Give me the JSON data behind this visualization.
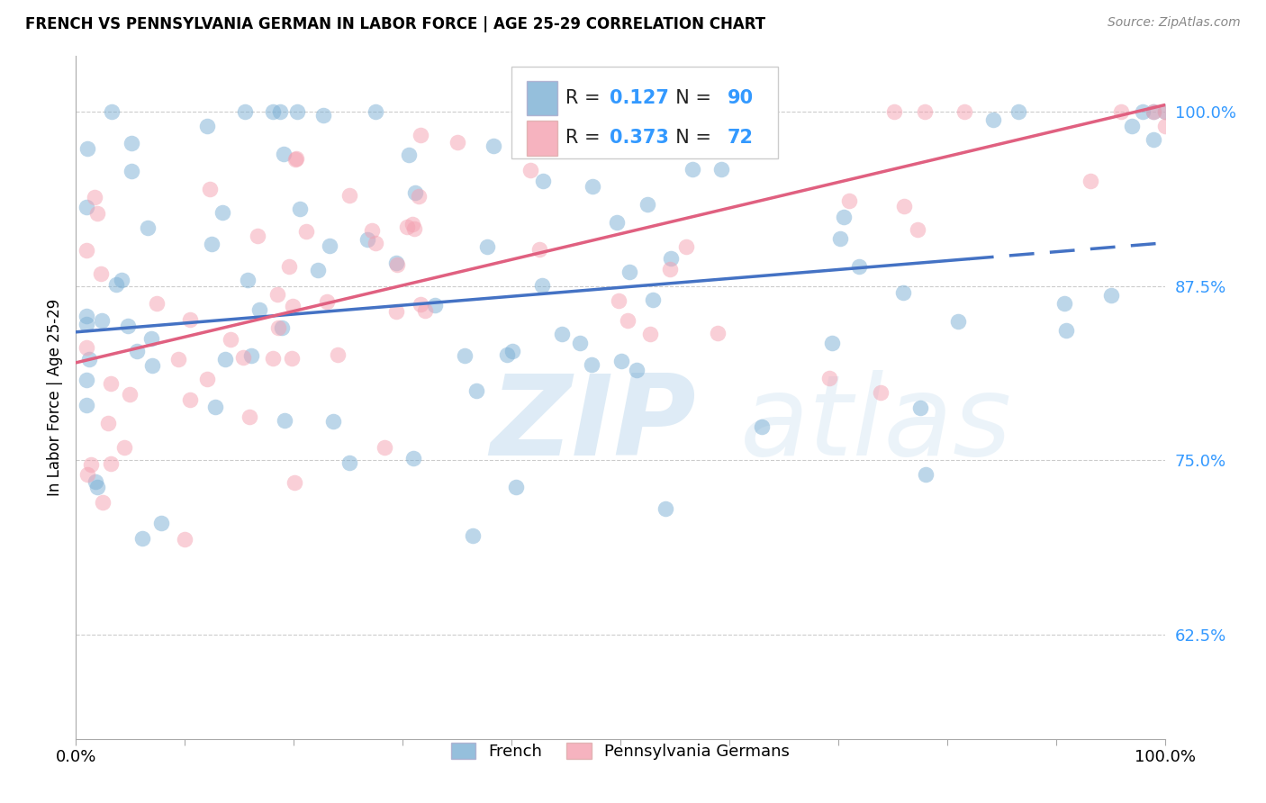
{
  "title": "FRENCH VS PENNSYLVANIA GERMAN IN LABOR FORCE | AGE 25-29 CORRELATION CHART",
  "source": "Source: ZipAtlas.com",
  "ylabel": "In Labor Force | Age 25-29",
  "xlim": [
    0.0,
    1.0
  ],
  "ylim": [
    0.55,
    1.04
  ],
  "french_color": "#7bafd4",
  "pa_german_color": "#f4a0b0",
  "french_line_color": "#4472c4",
  "pa_line_color": "#e06080",
  "french_R": 0.127,
  "french_N": 90,
  "pa_german_R": 0.373,
  "pa_german_N": 72,
  "watermark_color": "#c8dff0",
  "ytick_color": "#3399ff",
  "grid_color": "#cccccc",
  "title_fontsize": 12,
  "axis_fontsize": 12,
  "legend_fontsize": 15,
  "french_line_start_y": 0.842,
  "french_line_end_y": 0.906,
  "pa_line_start_y": 0.82,
  "pa_line_end_y": 1.005
}
